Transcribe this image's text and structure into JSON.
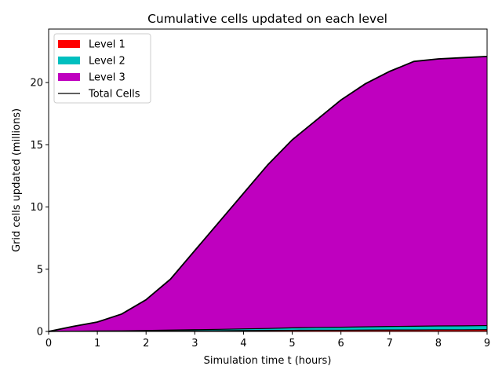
{
  "chart_data": {
    "type": "area",
    "stacked": true,
    "title": "Cumulative cells updated on each level",
    "xlabel": "Simulation time t (hours)",
    "ylabel": "Grid cells updated (millions)",
    "xlim": [
      0,
      9
    ],
    "ylim": [
      0,
      24.3
    ],
    "xticks": [
      0,
      1,
      2,
      3,
      4,
      5,
      6,
      7,
      8,
      9
    ],
    "yticks": [
      0,
      5,
      10,
      15,
      20
    ],
    "grid": false,
    "legend_position": "top-left",
    "x": [
      0,
      0.5,
      1,
      1.5,
      2,
      2.5,
      3,
      3.5,
      4,
      4.5,
      5,
      5.5,
      6,
      6.5,
      7,
      7.5,
      8,
      8.5,
      9
    ],
    "series": [
      {
        "name": "Level 1",
        "color": "#ff0000",
        "values": [
          0,
          0.01,
          0.02,
          0.02,
          0.03,
          0.04,
          0.05,
          0.06,
          0.07,
          0.08,
          0.09,
          0.1,
          0.1,
          0.11,
          0.12,
          0.12,
          0.13,
          0.13,
          0.14
        ]
      },
      {
        "name": "Level 2",
        "color": "#00bfbf",
        "values": [
          0,
          0.01,
          0.02,
          0.03,
          0.05,
          0.07,
          0.09,
          0.11,
          0.14,
          0.16,
          0.2,
          0.22,
          0.24,
          0.26,
          0.28,
          0.3,
          0.31,
          0.32,
          0.33
        ]
      },
      {
        "name": "Level 3",
        "color": "#bf00bf",
        "values": [
          0,
          0.38,
          0.72,
          1.35,
          2.47,
          4.09,
          6.36,
          8.63,
          10.89,
          13.16,
          15.11,
          16.68,
          18.26,
          19.53,
          20.5,
          21.28,
          21.46,
          21.55,
          21.63
        ]
      }
    ],
    "total": {
      "name": "Total Cells",
      "color": "#000000",
      "values": [
        0,
        0.4,
        0.76,
        1.4,
        2.55,
        4.2,
        6.5,
        8.8,
        11.1,
        13.4,
        15.4,
        17.0,
        18.6,
        19.9,
        20.9,
        21.7,
        21.9,
        22.0,
        22.1
      ]
    }
  }
}
